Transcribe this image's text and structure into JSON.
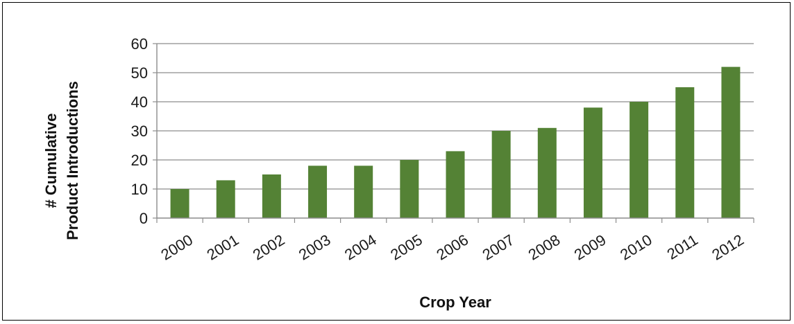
{
  "chart_data": {
    "type": "bar",
    "categories": [
      "2000",
      "2001",
      "2002",
      "2003",
      "2004",
      "2005",
      "2006",
      "2007",
      "2008",
      "2009",
      "2010",
      "2011",
      "2012"
    ],
    "series": [
      {
        "values": [
          10,
          13,
          15,
          18,
          18,
          20,
          23,
          30,
          31,
          38,
          40,
          45,
          52
        ]
      }
    ],
    "title": "",
    "xlabel": "Crop Year",
    "ylabel_line1": "# Cumulative",
    "ylabel_line2": "Product Introductions",
    "ylim": [
      0,
      60
    ],
    "yticks": [
      "0",
      "10",
      "20",
      "30",
      "40",
      "50",
      "60"
    ],
    "grid": true,
    "legend": "none",
    "bar_color": "#548235",
    "grid_color": "#8c8c8c",
    "axis_color": "#8c8c8c"
  }
}
